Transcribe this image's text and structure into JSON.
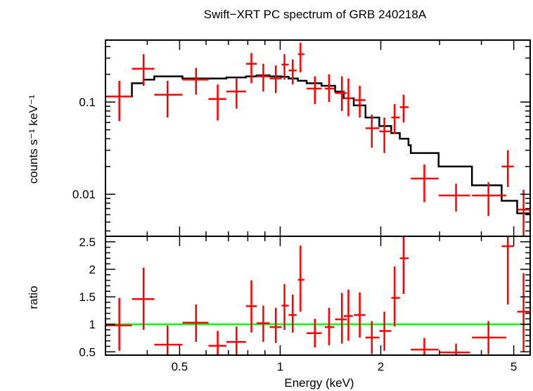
{
  "chart_data": [
    {
      "type": "scatter",
      "panel": "top",
      "title": "Swift−XRT PC spectrum of GRB 240218A",
      "ylabel": "counts s⁻¹ keV⁻¹",
      "xlabel": "",
      "xscale": "log",
      "yscale": "log",
      "xlim": [
        0.3,
        5.6
      ],
      "ylim": [
        0.0035,
        0.47
      ],
      "ytick_labels": [
        "0.1",
        "0.01"
      ],
      "ytick_values": [
        0.1,
        0.01
      ],
      "series": [
        {
          "name": "",
          "role": "data",
          "color": "#ff0000",
          "points": [
            {
              "x": 0.33,
              "xlo": 0.3,
              "xhi": 0.36,
              "y": 0.115,
              "ylo": 0.062,
              "yhi": 0.17
            },
            {
              "x": 0.39,
              "xlo": 0.36,
              "xhi": 0.42,
              "y": 0.23,
              "ylo": 0.15,
              "yhi": 0.33
            },
            {
              "x": 0.46,
              "xlo": 0.42,
              "xhi": 0.51,
              "y": 0.12,
              "ylo": 0.068,
              "yhi": 0.17
            },
            {
              "x": 0.56,
              "xlo": 0.51,
              "xhi": 0.61,
              "y": 0.175,
              "ylo": 0.12,
              "yhi": 0.235
            },
            {
              "x": 0.65,
              "xlo": 0.61,
              "xhi": 0.69,
              "y": 0.108,
              "ylo": 0.063,
              "yhi": 0.155
            },
            {
              "x": 0.74,
              "xlo": 0.69,
              "xhi": 0.79,
              "y": 0.13,
              "ylo": 0.085,
              "yhi": 0.18
            },
            {
              "x": 0.82,
              "xlo": 0.79,
              "xhi": 0.85,
              "y": 0.26,
              "ylo": 0.16,
              "yhi": 0.34
            },
            {
              "x": 0.89,
              "xlo": 0.85,
              "xhi": 0.93,
              "y": 0.19,
              "ylo": 0.13,
              "yhi": 0.26
            },
            {
              "x": 0.97,
              "xlo": 0.93,
              "xhi": 1.01,
              "y": 0.18,
              "ylo": 0.125,
              "yhi": 0.25
            },
            {
              "x": 1.03,
              "xlo": 1.01,
              "xhi": 1.06,
              "y": 0.255,
              "ylo": 0.175,
              "yhi": 0.33
            },
            {
              "x": 1.09,
              "xlo": 1.06,
              "xhi": 1.12,
              "y": 0.22,
              "ylo": 0.155,
              "yhi": 0.29
            },
            {
              "x": 1.15,
              "xlo": 1.13,
              "xhi": 1.18,
              "y": 0.33,
              "ylo": 0.21,
              "yhi": 0.44
            },
            {
              "x": 1.27,
              "xlo": 1.2,
              "xhi": 1.33,
              "y": 0.14,
              "ylo": 0.095,
              "yhi": 0.19
            },
            {
              "x": 1.4,
              "xlo": 1.36,
              "xhi": 1.45,
              "y": 0.14,
              "ylo": 0.1,
              "yhi": 0.2
            },
            {
              "x": 1.53,
              "xlo": 1.46,
              "xhi": 1.58,
              "y": 0.125,
              "ylo": 0.08,
              "yhi": 0.19
            },
            {
              "x": 1.6,
              "xlo": 1.55,
              "xhi": 1.65,
              "y": 0.11,
              "ylo": 0.07,
              "yhi": 0.18
            },
            {
              "x": 1.73,
              "xlo": 1.66,
              "xhi": 1.8,
              "y": 0.105,
              "ylo": 0.068,
              "yhi": 0.15
            },
            {
              "x": 1.88,
              "xlo": 1.8,
              "xhi": 1.98,
              "y": 0.052,
              "ylo": 0.032,
              "yhi": 0.073
            },
            {
              "x": 2.05,
              "xlo": 1.98,
              "xhi": 2.15,
              "y": 0.048,
              "ylo": 0.028,
              "yhi": 0.068
            },
            {
              "x": 2.2,
              "xlo": 2.15,
              "xhi": 2.28,
              "y": 0.068,
              "ylo": 0.045,
              "yhi": 0.095
            },
            {
              "x": 2.34,
              "xlo": 2.28,
              "xhi": 2.42,
              "y": 0.088,
              "ylo": 0.06,
              "yhi": 0.12
            },
            {
              "x": 2.7,
              "xlo": 2.46,
              "xhi": 2.98,
              "y": 0.0148,
              "ylo": 0.0082,
              "yhi": 0.021
            },
            {
              "x": 3.36,
              "xlo": 2.98,
              "xhi": 3.7,
              "y": 0.0097,
              "ylo": 0.0065,
              "yhi": 0.013
            },
            {
              "x": 4.2,
              "xlo": 3.75,
              "xhi": 4.75,
              "y": 0.0097,
              "ylo": 0.0058,
              "yhi": 0.0135
            },
            {
              "x": 4.8,
              "xlo": 4.6,
              "xhi": 5.0,
              "y": 0.02,
              "ylo": 0.012,
              "yhi": 0.03
            },
            {
              "x": 5.35,
              "xlo": 5.12,
              "xhi": 5.6,
              "y": 0.0068,
              "ylo": 0.0028,
              "yhi": 0.0112
            }
          ]
        },
        {
          "name": "",
          "role": "model",
          "color": "#000000",
          "steps": [
            {
              "x0": 0.3,
              "x1": 0.36,
              "y": 0.115
            },
            {
              "x0": 0.36,
              "x1": 0.39,
              "y": 0.16
            },
            {
              "x0": 0.39,
              "x1": 0.42,
              "y": 0.175
            },
            {
              "x0": 0.42,
              "x1": 0.51,
              "y": 0.19
            },
            {
              "x0": 0.51,
              "x1": 0.69,
              "y": 0.18
            },
            {
              "x0": 0.69,
              "x1": 0.79,
              "y": 0.185
            },
            {
              "x0": 0.79,
              "x1": 0.85,
              "y": 0.19
            },
            {
              "x0": 0.85,
              "x1": 0.93,
              "y": 0.195
            },
            {
              "x0": 0.93,
              "x1": 1.01,
              "y": 0.19
            },
            {
              "x0": 1.01,
              "x1": 1.06,
              "y": 0.188
            },
            {
              "x0": 1.06,
              "x1": 1.13,
              "y": 0.18
            },
            {
              "x0": 1.13,
              "x1": 1.2,
              "y": 0.17
            },
            {
              "x0": 1.2,
              "x1": 1.33,
              "y": 0.16
            },
            {
              "x0": 1.33,
              "x1": 1.46,
              "y": 0.15
            },
            {
              "x0": 1.46,
              "x1": 1.55,
              "y": 0.13
            },
            {
              "x0": 1.55,
              "x1": 1.66,
              "y": 0.11
            },
            {
              "x0": 1.66,
              "x1": 1.8,
              "y": 0.092
            },
            {
              "x0": 1.8,
              "x1": 1.98,
              "y": 0.068
            },
            {
              "x0": 1.98,
              "x1": 2.15,
              "y": 0.055
            },
            {
              "x0": 2.15,
              "x1": 2.28,
              "y": 0.046
            },
            {
              "x0": 2.28,
              "x1": 2.42,
              "y": 0.04
            },
            {
              "x0": 2.42,
              "x1": 2.46,
              "y": 0.034
            },
            {
              "x0": 2.46,
              "x1": 2.98,
              "y": 0.028
            },
            {
              "x0": 2.98,
              "x1": 3.75,
              "y": 0.02
            },
            {
              "x0": 3.75,
              "x1": 4.6,
              "y": 0.0125
            },
            {
              "x0": 4.6,
              "x1": 5.12,
              "y": 0.0085
            },
            {
              "x0": 5.12,
              "x1": 5.6,
              "y": 0.0062
            }
          ]
        }
      ]
    },
    {
      "type": "scatter",
      "panel": "bottom",
      "title": "",
      "ylabel": "ratio",
      "xlabel": "Energy (keV)",
      "xscale": "log",
      "yscale": "linear",
      "xlim": [
        0.3,
        5.6
      ],
      "ylim": [
        0.44,
        2.6
      ],
      "ytick_labels": [
        "0.5",
        "1",
        "1.5",
        "2",
        "2.5"
      ],
      "ytick_values": [
        0.5,
        1,
        1.5,
        2,
        2.5
      ],
      "xtick_labels": [
        "0.5",
        "1",
        "2",
        "5"
      ],
      "xtick_values": [
        0.5,
        1,
        2,
        5
      ],
      "reference_line": {
        "y": 1,
        "color": "#00ff00"
      },
      "series": [
        {
          "name": "",
          "role": "data",
          "color": "#ff0000",
          "points": [
            {
              "x": 0.33,
              "xlo": 0.3,
              "xhi": 0.36,
              "y": 0.98,
              "ylo": 0.52,
              "yhi": 1.48
            },
            {
              "x": 0.39,
              "xlo": 0.36,
              "xhi": 0.42,
              "y": 1.46,
              "ylo": 0.9,
              "yhi": 2.03
            },
            {
              "x": 0.46,
              "xlo": 0.42,
              "xhi": 0.51,
              "y": 0.63,
              "ylo": 0.45,
              "yhi": 0.98
            },
            {
              "x": 0.56,
              "xlo": 0.51,
              "xhi": 0.61,
              "y": 1.03,
              "ylo": 0.68,
              "yhi": 1.36
            },
            {
              "x": 0.65,
              "xlo": 0.61,
              "xhi": 0.69,
              "y": 0.61,
              "ylo": 0.44,
              "yhi": 0.88
            },
            {
              "x": 0.74,
              "xlo": 0.69,
              "xhi": 0.79,
              "y": 0.68,
              "ylo": 0.45,
              "yhi": 0.96
            },
            {
              "x": 0.82,
              "xlo": 0.79,
              "xhi": 0.85,
              "y": 1.33,
              "ylo": 0.85,
              "yhi": 1.8
            },
            {
              "x": 0.89,
              "xlo": 0.85,
              "xhi": 0.93,
              "y": 1.02,
              "ylo": 0.68,
              "yhi": 1.34
            },
            {
              "x": 0.97,
              "xlo": 0.93,
              "xhi": 1.01,
              "y": 0.95,
              "ylo": 0.66,
              "yhi": 1.3
            },
            {
              "x": 1.03,
              "xlo": 1.01,
              "xhi": 1.06,
              "y": 1.34,
              "ylo": 0.9,
              "yhi": 1.73
            },
            {
              "x": 1.09,
              "xlo": 1.06,
              "xhi": 1.12,
              "y": 1.17,
              "ylo": 0.85,
              "yhi": 1.54
            },
            {
              "x": 1.15,
              "xlo": 1.13,
              "xhi": 1.18,
              "y": 1.81,
              "ylo": 1.23,
              "yhi": 2.43
            },
            {
              "x": 1.27,
              "xlo": 1.2,
              "xhi": 1.33,
              "y": 0.84,
              "ylo": 0.58,
              "yhi": 1.1
            },
            {
              "x": 1.4,
              "xlo": 1.36,
              "xhi": 1.45,
              "y": 0.95,
              "ylo": 0.62,
              "yhi": 1.3
            },
            {
              "x": 1.53,
              "xlo": 1.46,
              "xhi": 1.58,
              "y": 1.09,
              "ylo": 0.65,
              "yhi": 1.57
            },
            {
              "x": 1.6,
              "xlo": 1.55,
              "xhi": 1.65,
              "y": 1.15,
              "ylo": 0.7,
              "yhi": 1.63
            },
            {
              "x": 1.73,
              "xlo": 1.66,
              "xhi": 1.8,
              "y": 1.17,
              "ylo": 0.76,
              "yhi": 1.58
            },
            {
              "x": 1.88,
              "xlo": 1.8,
              "xhi": 1.98,
              "y": 0.76,
              "ylo": 0.46,
              "yhi": 1.06
            },
            {
              "x": 2.05,
              "xlo": 1.98,
              "xhi": 2.15,
              "y": 0.88,
              "ylo": 0.52,
              "yhi": 1.23
            },
            {
              "x": 2.2,
              "xlo": 2.15,
              "xhi": 2.28,
              "y": 1.48,
              "ylo": 0.96,
              "yhi": 2.05
            },
            {
              "x": 2.34,
              "xlo": 2.28,
              "xhi": 2.42,
              "y": 2.2,
              "ylo": 1.55,
              "yhi": 2.6
            },
            {
              "x": 2.7,
              "xlo": 2.46,
              "xhi": 2.98,
              "y": 0.54,
              "ylo": 0.44,
              "yhi": 0.75
            },
            {
              "x": 3.36,
              "xlo": 2.98,
              "xhi": 3.7,
              "y": 0.49,
              "ylo": 0.44,
              "yhi": 0.65
            },
            {
              "x": 4.2,
              "xlo": 3.75,
              "xhi": 4.75,
              "y": 0.76,
              "ylo": 0.46,
              "yhi": 1.06
            },
            {
              "x": 4.8,
              "xlo": 4.6,
              "xhi": 5.0,
              "y": 2.42,
              "ylo": 1.36,
              "yhi": 2.6
            },
            {
              "x": 5.35,
              "xlo": 5.12,
              "xhi": 5.6,
              "y": 1.23,
              "ylo": 0.5,
              "yhi": 1.93
            }
          ]
        }
      ]
    }
  ]
}
